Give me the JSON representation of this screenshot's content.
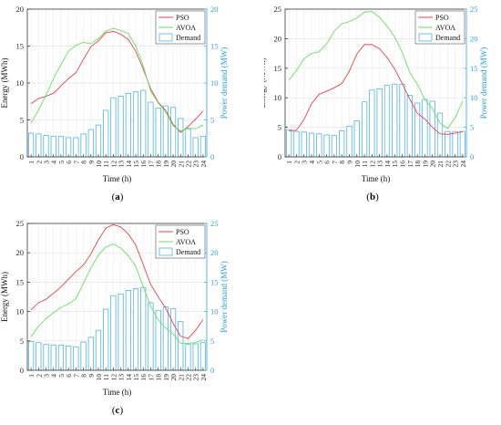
{
  "chart_data": [
    {
      "type": "bar+line",
      "panel": "(a)",
      "panel_letter": "a",
      "xlabel": "Time (h)",
      "ylabel_left": "Energy (MWh)",
      "ylabel_right": "Power demand (MW)",
      "ylim_left": [
        0,
        20
      ],
      "ylim_right": [
        0,
        20
      ],
      "yticks_left": [
        0,
        5,
        10,
        15,
        20
      ],
      "yticks_right": [
        0,
        5,
        10,
        15,
        20
      ],
      "legend_position": "top-right",
      "categories": [
        1,
        2,
        3,
        4,
        5,
        6,
        7,
        8,
        9,
        10,
        11,
        12,
        13,
        14,
        15,
        16,
        17,
        18,
        19,
        20,
        21,
        22,
        23,
        24
      ],
      "series": [
        {
          "name": "PSO",
          "kind": "line",
          "axis": "left",
          "color": "#e8434a",
          "values": [
            7.2,
            7.9,
            8.2,
            8.6,
            9.6,
            10.6,
            11.4,
            13.2,
            14.9,
            15.7,
            16.8,
            17.0,
            16.6,
            15.9,
            14.3,
            11.9,
            9.2,
            7.4,
            6.3,
            4.4,
            3.3,
            4.1,
            5.1,
            6.2
          ]
        },
        {
          "name": "AVOA",
          "kind": "line",
          "axis": "left",
          "color": "#66e05c",
          "values": [
            4.6,
            6.3,
            8.4,
            10.6,
            12.5,
            14.3,
            15.1,
            15.5,
            15.3,
            16.0,
            17.0,
            17.4,
            17.1,
            16.7,
            15.0,
            12.3,
            8.9,
            7.3,
            6.1,
            4.2,
            3.5,
            3.9,
            3.8,
            4.3
          ]
        },
        {
          "name": "Demand",
          "kind": "bar",
          "axis": "right",
          "color": "#4fb4e8",
          "values": [
            3.2,
            3.1,
            2.9,
            2.8,
            2.8,
            2.6,
            2.6,
            3.1,
            3.7,
            4.3,
            6.3,
            8.0,
            8.2,
            8.6,
            8.8,
            9.0,
            7.4,
            6.6,
            6.9,
            6.7,
            5.2,
            3.8,
            2.6,
            2.8
          ]
        }
      ]
    },
    {
      "type": "bar+line",
      "panel": "(b)",
      "panel_letter": "b",
      "xlabel": "Time (h)",
      "ylabel_left": "Energy (MWh)",
      "ylabel_right": "Power demand (MW)",
      "ylim_left": [
        0,
        25
      ],
      "ylim_right": [
        0,
        25
      ],
      "yticks_left": [
        0,
        5,
        10,
        15,
        20,
        25
      ],
      "yticks_right": [
        0,
        5,
        10,
        15,
        20,
        25
      ],
      "legend_position": "top-right",
      "categories": [
        1,
        2,
        3,
        4,
        5,
        6,
        7,
        8,
        9,
        10,
        11,
        12,
        13,
        14,
        15,
        16,
        17,
        18,
        19,
        20,
        21,
        22,
        23,
        24
      ],
      "series": [
        {
          "name": "PSO",
          "kind": "line",
          "axis": "left",
          "color": "#e8434a",
          "values": [
            4.4,
            4.5,
            6.3,
            9.0,
            10.6,
            11.1,
            11.7,
            12.4,
            14.5,
            17.4,
            19.0,
            19.0,
            18.3,
            16.8,
            14.9,
            12.4,
            9.8,
            7.4,
            6.4,
            5.0,
            3.9,
            3.8,
            4.0,
            4.3
          ]
        },
        {
          "name": "AVOA",
          "kind": "line",
          "axis": "left",
          "color": "#66e05c",
          "values": [
            13.0,
            14.6,
            16.6,
            17.5,
            17.8,
            19.1,
            21.3,
            22.5,
            22.9,
            23.5,
            24.5,
            24.6,
            23.6,
            22.1,
            20.3,
            17.7,
            14.3,
            12.3,
            9.7,
            8.2,
            5.7,
            4.8,
            6.6,
            9.4
          ]
        },
        {
          "name": "Demand",
          "kind": "bar",
          "axis": "right",
          "color": "#4fb4e8",
          "values": [
            4.6,
            4.3,
            4.2,
            4.0,
            3.9,
            3.7,
            3.6,
            4.4,
            5.2,
            6.1,
            9.3,
            11.3,
            11.5,
            12.1,
            12.3,
            12.3,
            10.4,
            9.1,
            9.7,
            9.4,
            7.4,
            4.3,
            4.3,
            4.3
          ]
        }
      ]
    },
    {
      "type": "bar+line",
      "panel": "(c)",
      "panel_letter": "c",
      "xlabel": "Time (h)",
      "ylabel_left": "Energy (MWh)",
      "ylabel_right": "Power demand (MW)",
      "ylim_left": [
        0,
        25
      ],
      "ylim_right": [
        0,
        25
      ],
      "yticks_left": [
        0,
        5,
        10,
        15,
        20,
        25
      ],
      "yticks_right": [
        0,
        5,
        10,
        15,
        20,
        25
      ],
      "legend_position": "top-right",
      "categories": [
        1,
        2,
        3,
        4,
        5,
        6,
        7,
        8,
        9,
        10,
        11,
        12,
        13,
        14,
        15,
        16,
        17,
        18,
        19,
        20,
        21,
        22,
        23,
        24
      ],
      "series": [
        {
          "name": "PSO",
          "kind": "line",
          "axis": "left",
          "color": "#e8434a",
          "values": [
            10.3,
            11.5,
            12.1,
            13.1,
            14.2,
            15.5,
            16.8,
            17.9,
            19.8,
            22.2,
            24.2,
            24.8,
            24.4,
            23.2,
            21.3,
            18.0,
            14.6,
            12.5,
            10.6,
            8.0,
            5.8,
            5.4,
            6.8,
            8.6
          ]
        },
        {
          "name": "AVOA",
          "kind": "line",
          "axis": "left",
          "color": "#66e05c",
          "values": [
            5.7,
            7.5,
            8.8,
            9.8,
            10.7,
            11.3,
            12.2,
            14.8,
            17.4,
            19.6,
            21.0,
            21.5,
            20.8,
            19.5,
            17.7,
            14.2,
            10.9,
            8.6,
            7.2,
            6.2,
            4.6,
            4.6,
            4.7,
            5.2
          ]
        },
        {
          "name": "Demand",
          "kind": "bar",
          "axis": "right",
          "color": "#4fb4e8",
          "values": [
            4.9,
            4.7,
            4.4,
            4.3,
            4.3,
            4.1,
            4.0,
            4.8,
            5.6,
            6.8,
            10.4,
            12.7,
            13.0,
            13.6,
            13.9,
            14.1,
            11.5,
            10.2,
            10.8,
            10.5,
            8.3,
            4.4,
            4.5,
            4.7
          ]
        }
      ]
    }
  ]
}
